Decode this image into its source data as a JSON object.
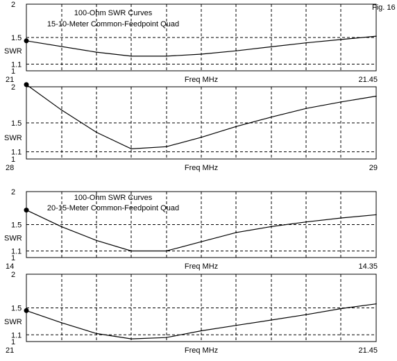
{
  "figure_label": "Fig. 16",
  "colors": {
    "background": "#ffffff",
    "ink": "#000000"
  },
  "chart_data": [
    {
      "type": "line",
      "title": [
        "100-Ohm SWR Curves",
        "15-10-Meter Common-Feedpoint Quad"
      ],
      "xlabel": "Freq MHz",
      "ylabel": "SWR",
      "x_range": [
        21,
        21.45
      ],
      "x_tick_labels": [
        "21",
        "21.45"
      ],
      "ylim": [
        1,
        2
      ],
      "y_tick_labels": [
        "1",
        "1.1",
        "1.5",
        "2"
      ],
      "grid": true,
      "x": [
        21,
        21.09,
        21.135,
        21.18,
        21.225,
        21.27,
        21.315,
        21.36,
        21.405,
        21.45
      ],
      "values": [
        1.45,
        1.28,
        1.22,
        1.22,
        1.25,
        1.3,
        1.36,
        1.42,
        1.47,
        1.52
      ],
      "marker_at_start": true
    },
    {
      "type": "line",
      "title": [],
      "xlabel": "Freq MHz",
      "ylabel": "SWR",
      "x_range": [
        28,
        29
      ],
      "x_tick_labels": [
        "28",
        "29"
      ],
      "ylim": [
        1,
        2
      ],
      "y_tick_labels": [
        "1",
        "1.1",
        "1.5",
        "2"
      ],
      "grid": true,
      "x": [
        28,
        28.1,
        28.2,
        28.3,
        28.4,
        28.5,
        28.6,
        28.7,
        28.8,
        28.9,
        29
      ],
      "values": [
        2.03,
        1.68,
        1.37,
        1.14,
        1.17,
        1.3,
        1.45,
        1.58,
        1.7,
        1.79,
        1.87
      ],
      "marker_at_start": true
    },
    {
      "type": "line",
      "title": [
        "100-Ohm SWR Curves",
        "20-15-Meter Common-Feedpoint Quad"
      ],
      "xlabel": "Freq MHz",
      "ylabel": "SWR",
      "x_range": [
        14,
        14.35
      ],
      "x_tick_labels": [
        "14",
        "14.35"
      ],
      "ylim": [
        1,
        2
      ],
      "y_tick_labels": [
        "1",
        "1.1",
        "1.5",
        "2"
      ],
      "grid": true,
      "x": [
        14,
        14.035,
        14.07,
        14.105,
        14.14,
        14.175,
        14.21,
        14.245,
        14.28,
        14.315,
        14.35
      ],
      "values": [
        1.72,
        1.47,
        1.26,
        1.1,
        1.1,
        1.24,
        1.38,
        1.47,
        1.54,
        1.6,
        1.65
      ],
      "marker_at_start": true
    },
    {
      "type": "line",
      "title": [],
      "xlabel": "Freq MHz",
      "ylabel": "SWR",
      "x_range": [
        21,
        21.45
      ],
      "x_tick_labels": [
        "21",
        "21.45"
      ],
      "ylim": [
        1,
        2
      ],
      "y_tick_labels": [
        "1",
        "1.1",
        "1.5",
        "2"
      ],
      "grid": true,
      "x": [
        21,
        21.045,
        21.09,
        21.135,
        21.18,
        21.225,
        21.27,
        21.315,
        21.36,
        21.405,
        21.45
      ],
      "values": [
        1.46,
        1.28,
        1.12,
        1.04,
        1.06,
        1.16,
        1.24,
        1.32,
        1.4,
        1.49,
        1.56
      ],
      "marker_at_start": true
    }
  ]
}
